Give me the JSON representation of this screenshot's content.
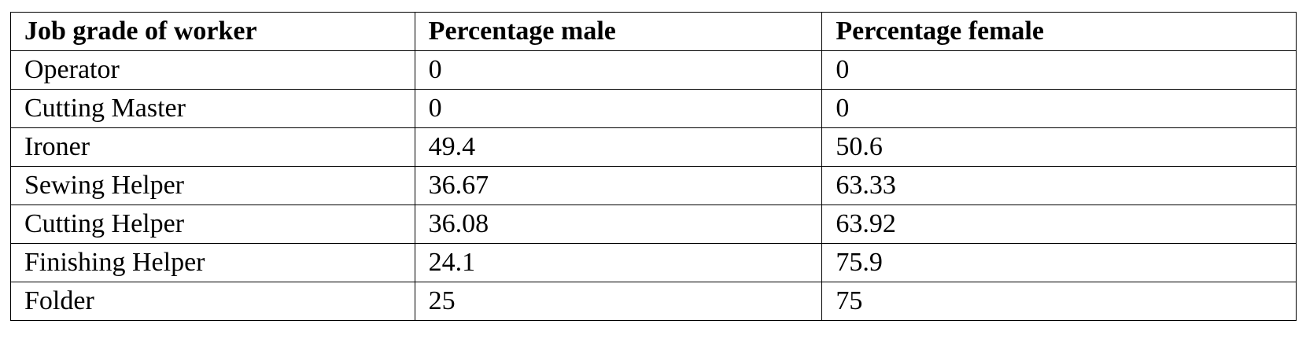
{
  "table": {
    "header": [
      "Job grade of worker",
      "Percentage male",
      "Percentage female"
    ],
    "rows": [
      [
        "Operator",
        0,
        0
      ],
      [
        "Cutting Master",
        0,
        0
      ],
      [
        "Ironer",
        49.4,
        50.6
      ],
      [
        "Sewing Helper",
        36.67,
        63.33
      ],
      [
        "Cutting Helper",
        36.08,
        63.92
      ],
      [
        "Finishing Helper",
        24.1,
        75.9
      ],
      [
        "Folder",
        25,
        75
      ]
    ]
  }
}
